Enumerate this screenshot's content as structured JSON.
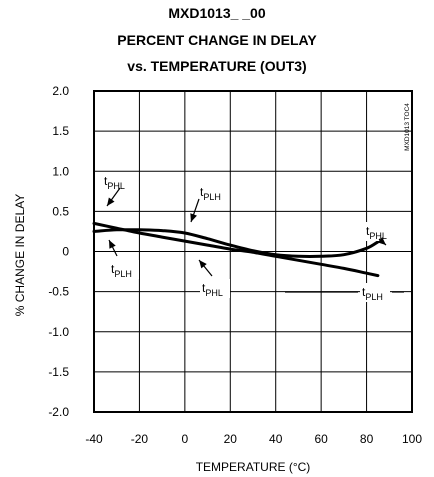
{
  "chart_data": {
    "type": "line",
    "title_lines": [
      "MXD1013_ _00",
      "PERCENT CHANGE IN DELAY",
      "vs. TEMPERATURE (OUT3)"
    ],
    "xlabel": "TEMPERATURE (°C)",
    "ylabel": "% CHANGE IN DELAY",
    "xlim": [
      -40,
      100
    ],
    "ylim": [
      -2.0,
      2.0
    ],
    "x_ticks": [
      "-40",
      "-20",
      "0",
      "20",
      "40",
      "60",
      "80",
      "100"
    ],
    "y_ticks": [
      "2.0",
      "1.5",
      "1.0",
      "0.5",
      "0",
      "-0.5",
      "-1.0",
      "-1.5",
      "-2.0"
    ],
    "grid": true,
    "watermark": "MXD1013 TOC4",
    "series": [
      {
        "name": "tPHL",
        "x": [
          -40,
          -30,
          -20,
          -10,
          0,
          10,
          20,
          30,
          40,
          50,
          60,
          70,
          80,
          85
        ],
        "y": [
          0.35,
          0.29,
          0.23,
          0.18,
          0.13,
          0.08,
          0.03,
          -0.01,
          -0.06,
          -0.11,
          -0.16,
          -0.21,
          -0.27,
          -0.3
        ]
      },
      {
        "name": "tPLH",
        "x": [
          -40,
          -30,
          -20,
          -10,
          0,
          10,
          20,
          30,
          40,
          50,
          60,
          70,
          80,
          85
        ],
        "y": [
          0.25,
          0.27,
          0.27,
          0.26,
          0.23,
          0.16,
          0.08,
          0.01,
          -0.04,
          -0.06,
          -0.06,
          -0.04,
          0.04,
          0.12
        ]
      }
    ],
    "annotations": [
      {
        "base": "t",
        "sub": "PHL",
        "target_series": "tPHL"
      },
      {
        "base": "t",
        "sub": "PLH",
        "target_series": "tPLH"
      },
      {
        "base": "t",
        "sub": "PLH",
        "target_series": "tPLH"
      },
      {
        "base": "t",
        "sub": "PHL",
        "target_series": "tPHL"
      },
      {
        "base": "t",
        "sub": "PHL",
        "target_series": "tPLH"
      },
      {
        "base": "t",
        "sub": "PLH",
        "target_series": "tPHL"
      }
    ]
  }
}
